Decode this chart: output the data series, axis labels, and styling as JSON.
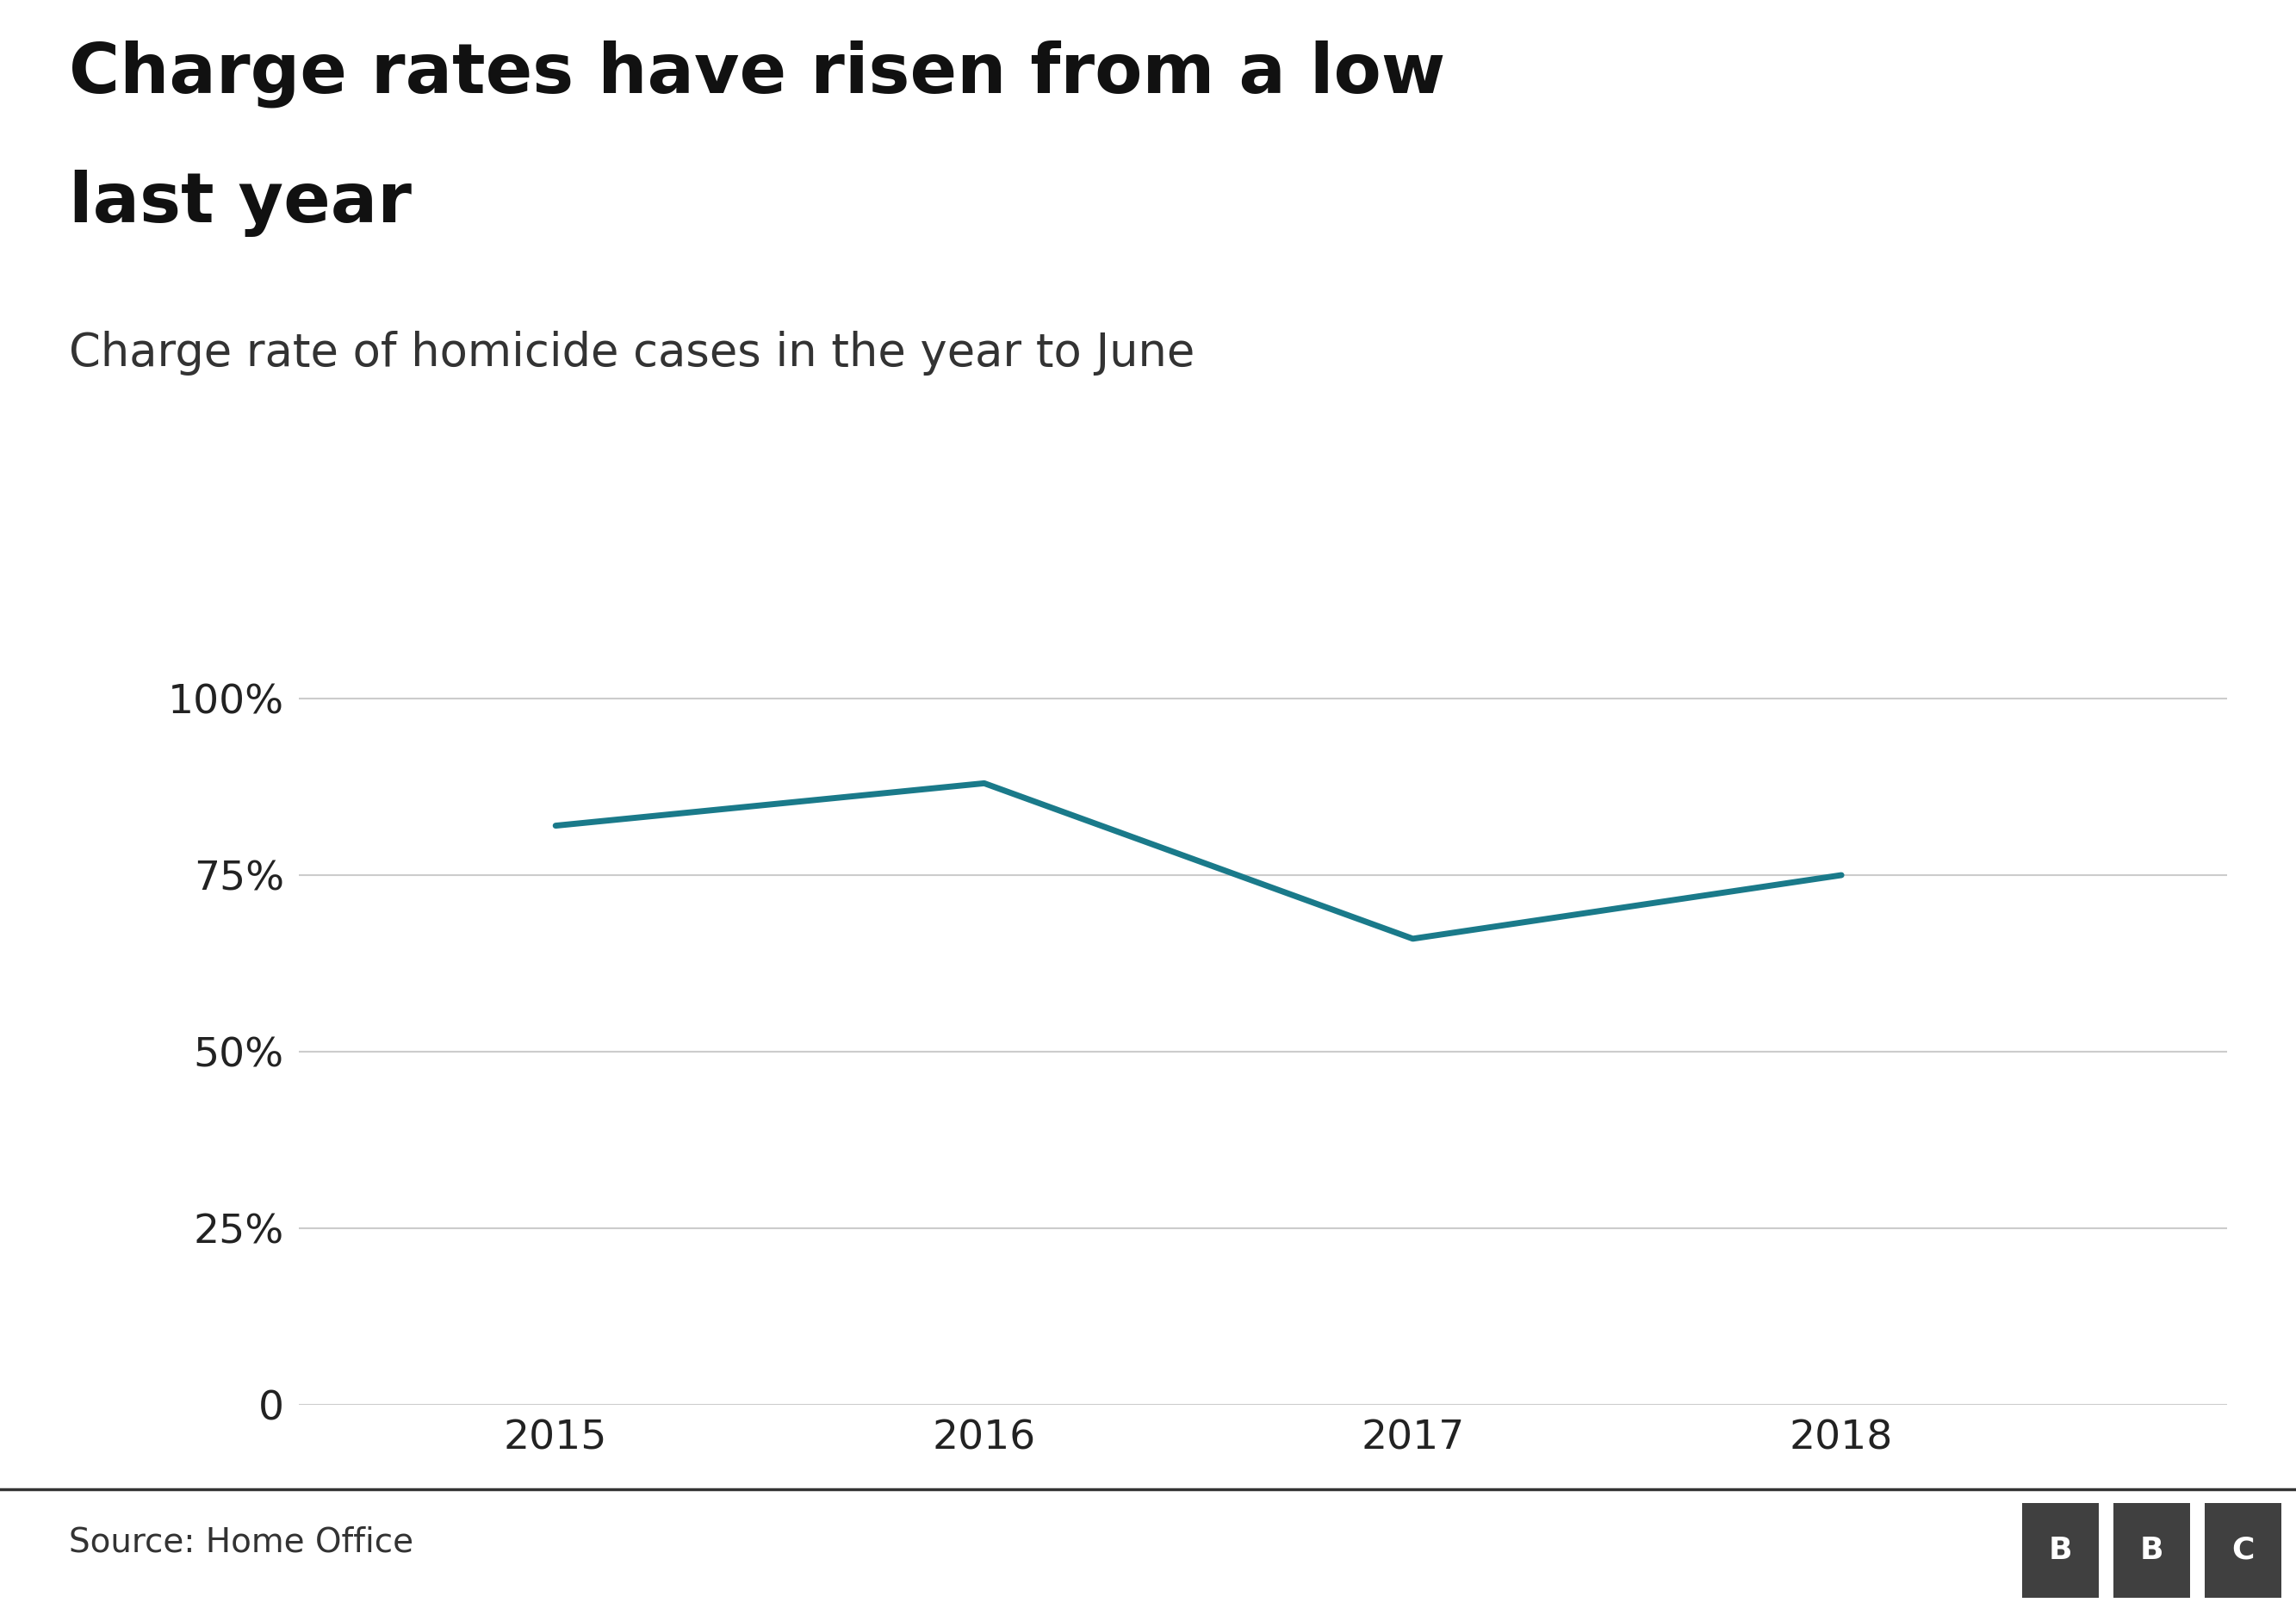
{
  "title_line1": "Charge rates have risen from a low",
  "title_line2": "last year",
  "subtitle": "Charge rate of homicide cases in the year to June",
  "x_values": [
    2015,
    2016,
    2017,
    2018
  ],
  "y_values": [
    82,
    88,
    66,
    75
  ],
  "line_color": "#1a7a8a",
  "line_width": 5,
  "y_ticks": [
    0,
    25,
    50,
    75,
    100
  ],
  "y_tick_labels": [
    "0",
    "25%",
    "50%",
    "75%",
    "100%"
  ],
  "ylim": [
    0,
    112
  ],
  "xlim": [
    2014.4,
    2018.9
  ],
  "background_color": "#ffffff",
  "source_text": "Source: Home Office",
  "title_fontsize": 58,
  "subtitle_fontsize": 38,
  "tick_fontsize": 34,
  "source_fontsize": 28,
  "grid_color": "#cccccc",
  "axis_color": "#222222",
  "footer_line_color": "#333333",
  "bbc_box_color": "#404040",
  "bbc_text_color": "#ffffff"
}
